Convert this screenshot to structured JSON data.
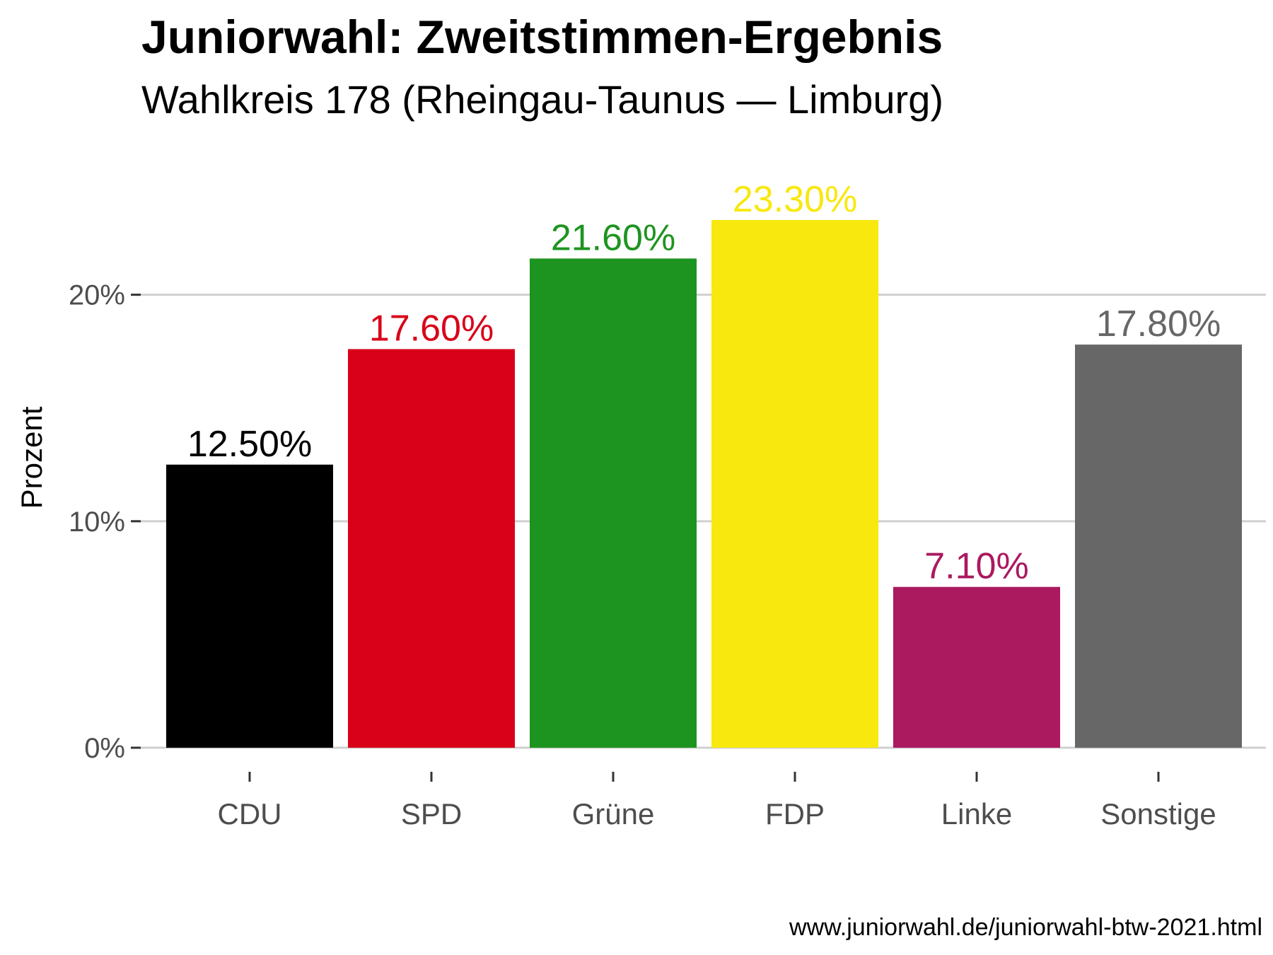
{
  "chart_data": {
    "type": "bar",
    "title": "Juniorwahl: Zweitstimmen-Ergebnis",
    "subtitle": "Wahlkreis 178 (Rheingau-Taunus — Limburg)",
    "xlabel": "",
    "ylabel": "Prozent",
    "categories": [
      "CDU",
      "SPD",
      "Grüne",
      "FDP",
      "Linke",
      "Sonstige"
    ],
    "values": [
      12.5,
      17.6,
      21.6,
      23.3,
      7.1,
      17.8
    ],
    "value_labels": [
      "12.50%",
      "17.60%",
      "21.60%",
      "23.30%",
      "7.10%",
      "17.80%"
    ],
    "colors": [
      "#000000",
      "#d90019",
      "#1e9420",
      "#f8e80e",
      "#ab195f",
      "#676767"
    ],
    "ylim": [
      0,
      23.3
    ],
    "yticks": [
      0,
      10,
      20
    ],
    "ytick_labels": [
      "0%",
      "10%",
      "20%"
    ],
    "grid": "horizontal",
    "legend": "none"
  },
  "caption": "www.juniorwahl.de/juniorwahl-btw-2021.html"
}
